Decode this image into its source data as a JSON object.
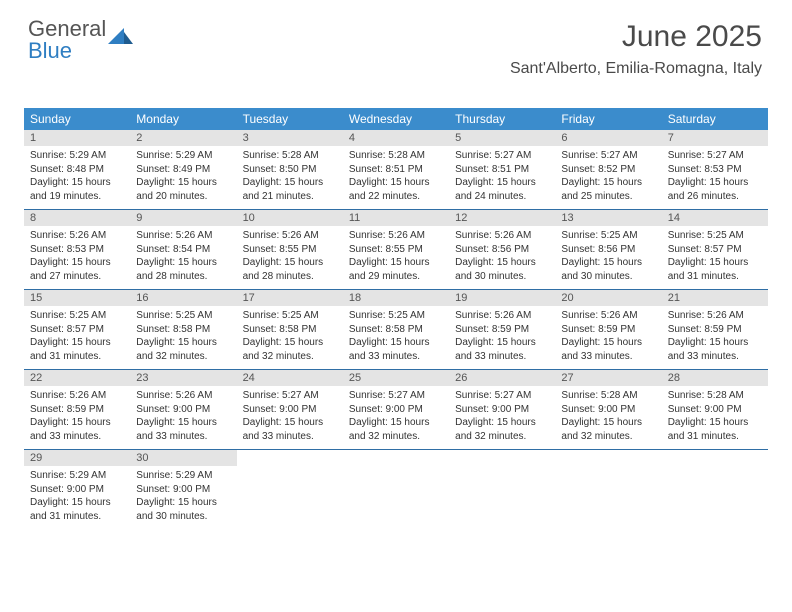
{
  "logo": {
    "line1": "General",
    "line2": "Blue"
  },
  "header": {
    "title": "June 2025",
    "location": "Sant'Alberto, Emilia-Romagna, Italy"
  },
  "colors": {
    "header_bg": "#3b8ccc",
    "daynum_bg": "#e4e4e4",
    "week_border": "#2f6ea5",
    "logo_blue": "#2f7ec2",
    "text": "#333333"
  },
  "day_names": [
    "Sunday",
    "Monday",
    "Tuesday",
    "Wednesday",
    "Thursday",
    "Friday",
    "Saturday"
  ],
  "weeks": [
    [
      {
        "n": "1",
        "sr": "5:29 AM",
        "ss": "8:48 PM",
        "d1": "15 hours",
        "d2": "and 19 minutes."
      },
      {
        "n": "2",
        "sr": "5:29 AM",
        "ss": "8:49 PM",
        "d1": "15 hours",
        "d2": "and 20 minutes."
      },
      {
        "n": "3",
        "sr": "5:28 AM",
        "ss": "8:50 PM",
        "d1": "15 hours",
        "d2": "and 21 minutes."
      },
      {
        "n": "4",
        "sr": "5:28 AM",
        "ss": "8:51 PM",
        "d1": "15 hours",
        "d2": "and 22 minutes."
      },
      {
        "n": "5",
        "sr": "5:27 AM",
        "ss": "8:51 PM",
        "d1": "15 hours",
        "d2": "and 24 minutes."
      },
      {
        "n": "6",
        "sr": "5:27 AM",
        "ss": "8:52 PM",
        "d1": "15 hours",
        "d2": "and 25 minutes."
      },
      {
        "n": "7",
        "sr": "5:27 AM",
        "ss": "8:53 PM",
        "d1": "15 hours",
        "d2": "and 26 minutes."
      }
    ],
    [
      {
        "n": "8",
        "sr": "5:26 AM",
        "ss": "8:53 PM",
        "d1": "15 hours",
        "d2": "and 27 minutes."
      },
      {
        "n": "9",
        "sr": "5:26 AM",
        "ss": "8:54 PM",
        "d1": "15 hours",
        "d2": "and 28 minutes."
      },
      {
        "n": "10",
        "sr": "5:26 AM",
        "ss": "8:55 PM",
        "d1": "15 hours",
        "d2": "and 28 minutes."
      },
      {
        "n": "11",
        "sr": "5:26 AM",
        "ss": "8:55 PM",
        "d1": "15 hours",
        "d2": "and 29 minutes."
      },
      {
        "n": "12",
        "sr": "5:26 AM",
        "ss": "8:56 PM",
        "d1": "15 hours",
        "d2": "and 30 minutes."
      },
      {
        "n": "13",
        "sr": "5:25 AM",
        "ss": "8:56 PM",
        "d1": "15 hours",
        "d2": "and 30 minutes."
      },
      {
        "n": "14",
        "sr": "5:25 AM",
        "ss": "8:57 PM",
        "d1": "15 hours",
        "d2": "and 31 minutes."
      }
    ],
    [
      {
        "n": "15",
        "sr": "5:25 AM",
        "ss": "8:57 PM",
        "d1": "15 hours",
        "d2": "and 31 minutes."
      },
      {
        "n": "16",
        "sr": "5:25 AM",
        "ss": "8:58 PM",
        "d1": "15 hours",
        "d2": "and 32 minutes."
      },
      {
        "n": "17",
        "sr": "5:25 AM",
        "ss": "8:58 PM",
        "d1": "15 hours",
        "d2": "and 32 minutes."
      },
      {
        "n": "18",
        "sr": "5:25 AM",
        "ss": "8:58 PM",
        "d1": "15 hours",
        "d2": "and 33 minutes."
      },
      {
        "n": "19",
        "sr": "5:26 AM",
        "ss": "8:59 PM",
        "d1": "15 hours",
        "d2": "and 33 minutes."
      },
      {
        "n": "20",
        "sr": "5:26 AM",
        "ss": "8:59 PM",
        "d1": "15 hours",
        "d2": "and 33 minutes."
      },
      {
        "n": "21",
        "sr": "5:26 AM",
        "ss": "8:59 PM",
        "d1": "15 hours",
        "d2": "and 33 minutes."
      }
    ],
    [
      {
        "n": "22",
        "sr": "5:26 AM",
        "ss": "8:59 PM",
        "d1": "15 hours",
        "d2": "and 33 minutes."
      },
      {
        "n": "23",
        "sr": "5:26 AM",
        "ss": "9:00 PM",
        "d1": "15 hours",
        "d2": "and 33 minutes."
      },
      {
        "n": "24",
        "sr": "5:27 AM",
        "ss": "9:00 PM",
        "d1": "15 hours",
        "d2": "and 33 minutes."
      },
      {
        "n": "25",
        "sr": "5:27 AM",
        "ss": "9:00 PM",
        "d1": "15 hours",
        "d2": "and 32 minutes."
      },
      {
        "n": "26",
        "sr": "5:27 AM",
        "ss": "9:00 PM",
        "d1": "15 hours",
        "d2": "and 32 minutes."
      },
      {
        "n": "27",
        "sr": "5:28 AM",
        "ss": "9:00 PM",
        "d1": "15 hours",
        "d2": "and 32 minutes."
      },
      {
        "n": "28",
        "sr": "5:28 AM",
        "ss": "9:00 PM",
        "d1": "15 hours",
        "d2": "and 31 minutes."
      }
    ],
    [
      {
        "n": "29",
        "sr": "5:29 AM",
        "ss": "9:00 PM",
        "d1": "15 hours",
        "d2": "and 31 minutes."
      },
      {
        "n": "30",
        "sr": "5:29 AM",
        "ss": "9:00 PM",
        "d1": "15 hours",
        "d2": "and 30 minutes."
      },
      null,
      null,
      null,
      null,
      null
    ]
  ],
  "labels": {
    "sunrise": "Sunrise:",
    "sunset": "Sunset:",
    "daylight": "Daylight:"
  }
}
